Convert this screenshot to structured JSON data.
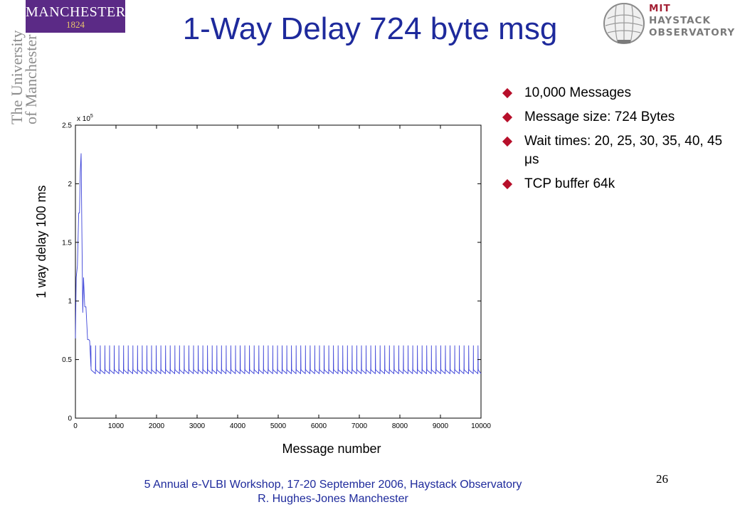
{
  "logos": {
    "manchester_word": "MANCHESTER",
    "manchester_year": "1824",
    "university_line1": "The University",
    "university_line2": "of Manchester",
    "mit_line1": "MIT",
    "mit_line2": "HAYSTACK",
    "mit_line3": "OBSERVATORY",
    "mit_icon": "radome-icon"
  },
  "title": "1-Way Delay 724 byte msg",
  "bullets": [
    "10,000 Messages",
    "Message size: 724 Bytes",
    "Wait times: 20, 25, 30, 35, 40, 45 μs",
    "TCP buffer 64k"
  ],
  "colors": {
    "title": "#1e2a9c",
    "bullet": "#b70f2a",
    "series": "#3c43d8"
  },
  "chart_data": {
    "type": "line",
    "xlabel": "Message number",
    "ylabel": "1 way delay 100 ms",
    "y_multiplier_label": "x 10",
    "y_multiplier_exp": "5",
    "xlim": [
      0,
      10000
    ],
    "ylim": [
      0,
      2.5
    ],
    "x_ticks": [
      "0",
      "1000",
      "2000",
      "3000",
      "4000",
      "5000",
      "6000",
      "7000",
      "8000",
      "9000",
      "10000"
    ],
    "y_ticks": [
      "0",
      "0.5",
      "1",
      "1.5",
      "2",
      "2.5"
    ],
    "grid": false,
    "series": [
      {
        "x": [
          0,
          20,
          50,
          80,
          100,
          120,
          140,
          160,
          180,
          200,
          230,
          260,
          300,
          330,
          350,
          380,
          400,
          450,
          500,
          550,
          600,
          800,
          1000,
          2000,
          3000,
          4000,
          5000,
          6000,
          7000,
          8000,
          9000,
          9900,
          10000
        ],
        "y": [
          0.68,
          1.2,
          1.3,
          1.75,
          1.75,
          2.1,
          2.26,
          1.58,
          0.9,
          1.2,
          0.95,
          0.95,
          0.67,
          0.67,
          0.66,
          0.45,
          0.4,
          0.39,
          0.39,
          0.38,
          0.38,
          0.38,
          0.38,
          0.38,
          0.38,
          0.38,
          0.38,
          0.38,
          0.38,
          0.38,
          0.38,
          0.38,
          0.38
        ],
        "spike_period": 115,
        "spike_start": 380,
        "spike_level": 0.62,
        "baseline_level": 0.38
      }
    ]
  },
  "footer": {
    "line1": "5 Annual e-VLBI Workshop, 17-20 September 2006, Haystack Observatory",
    "line2": "R. Hughes-Jones  Manchester"
  },
  "page_number": "26"
}
